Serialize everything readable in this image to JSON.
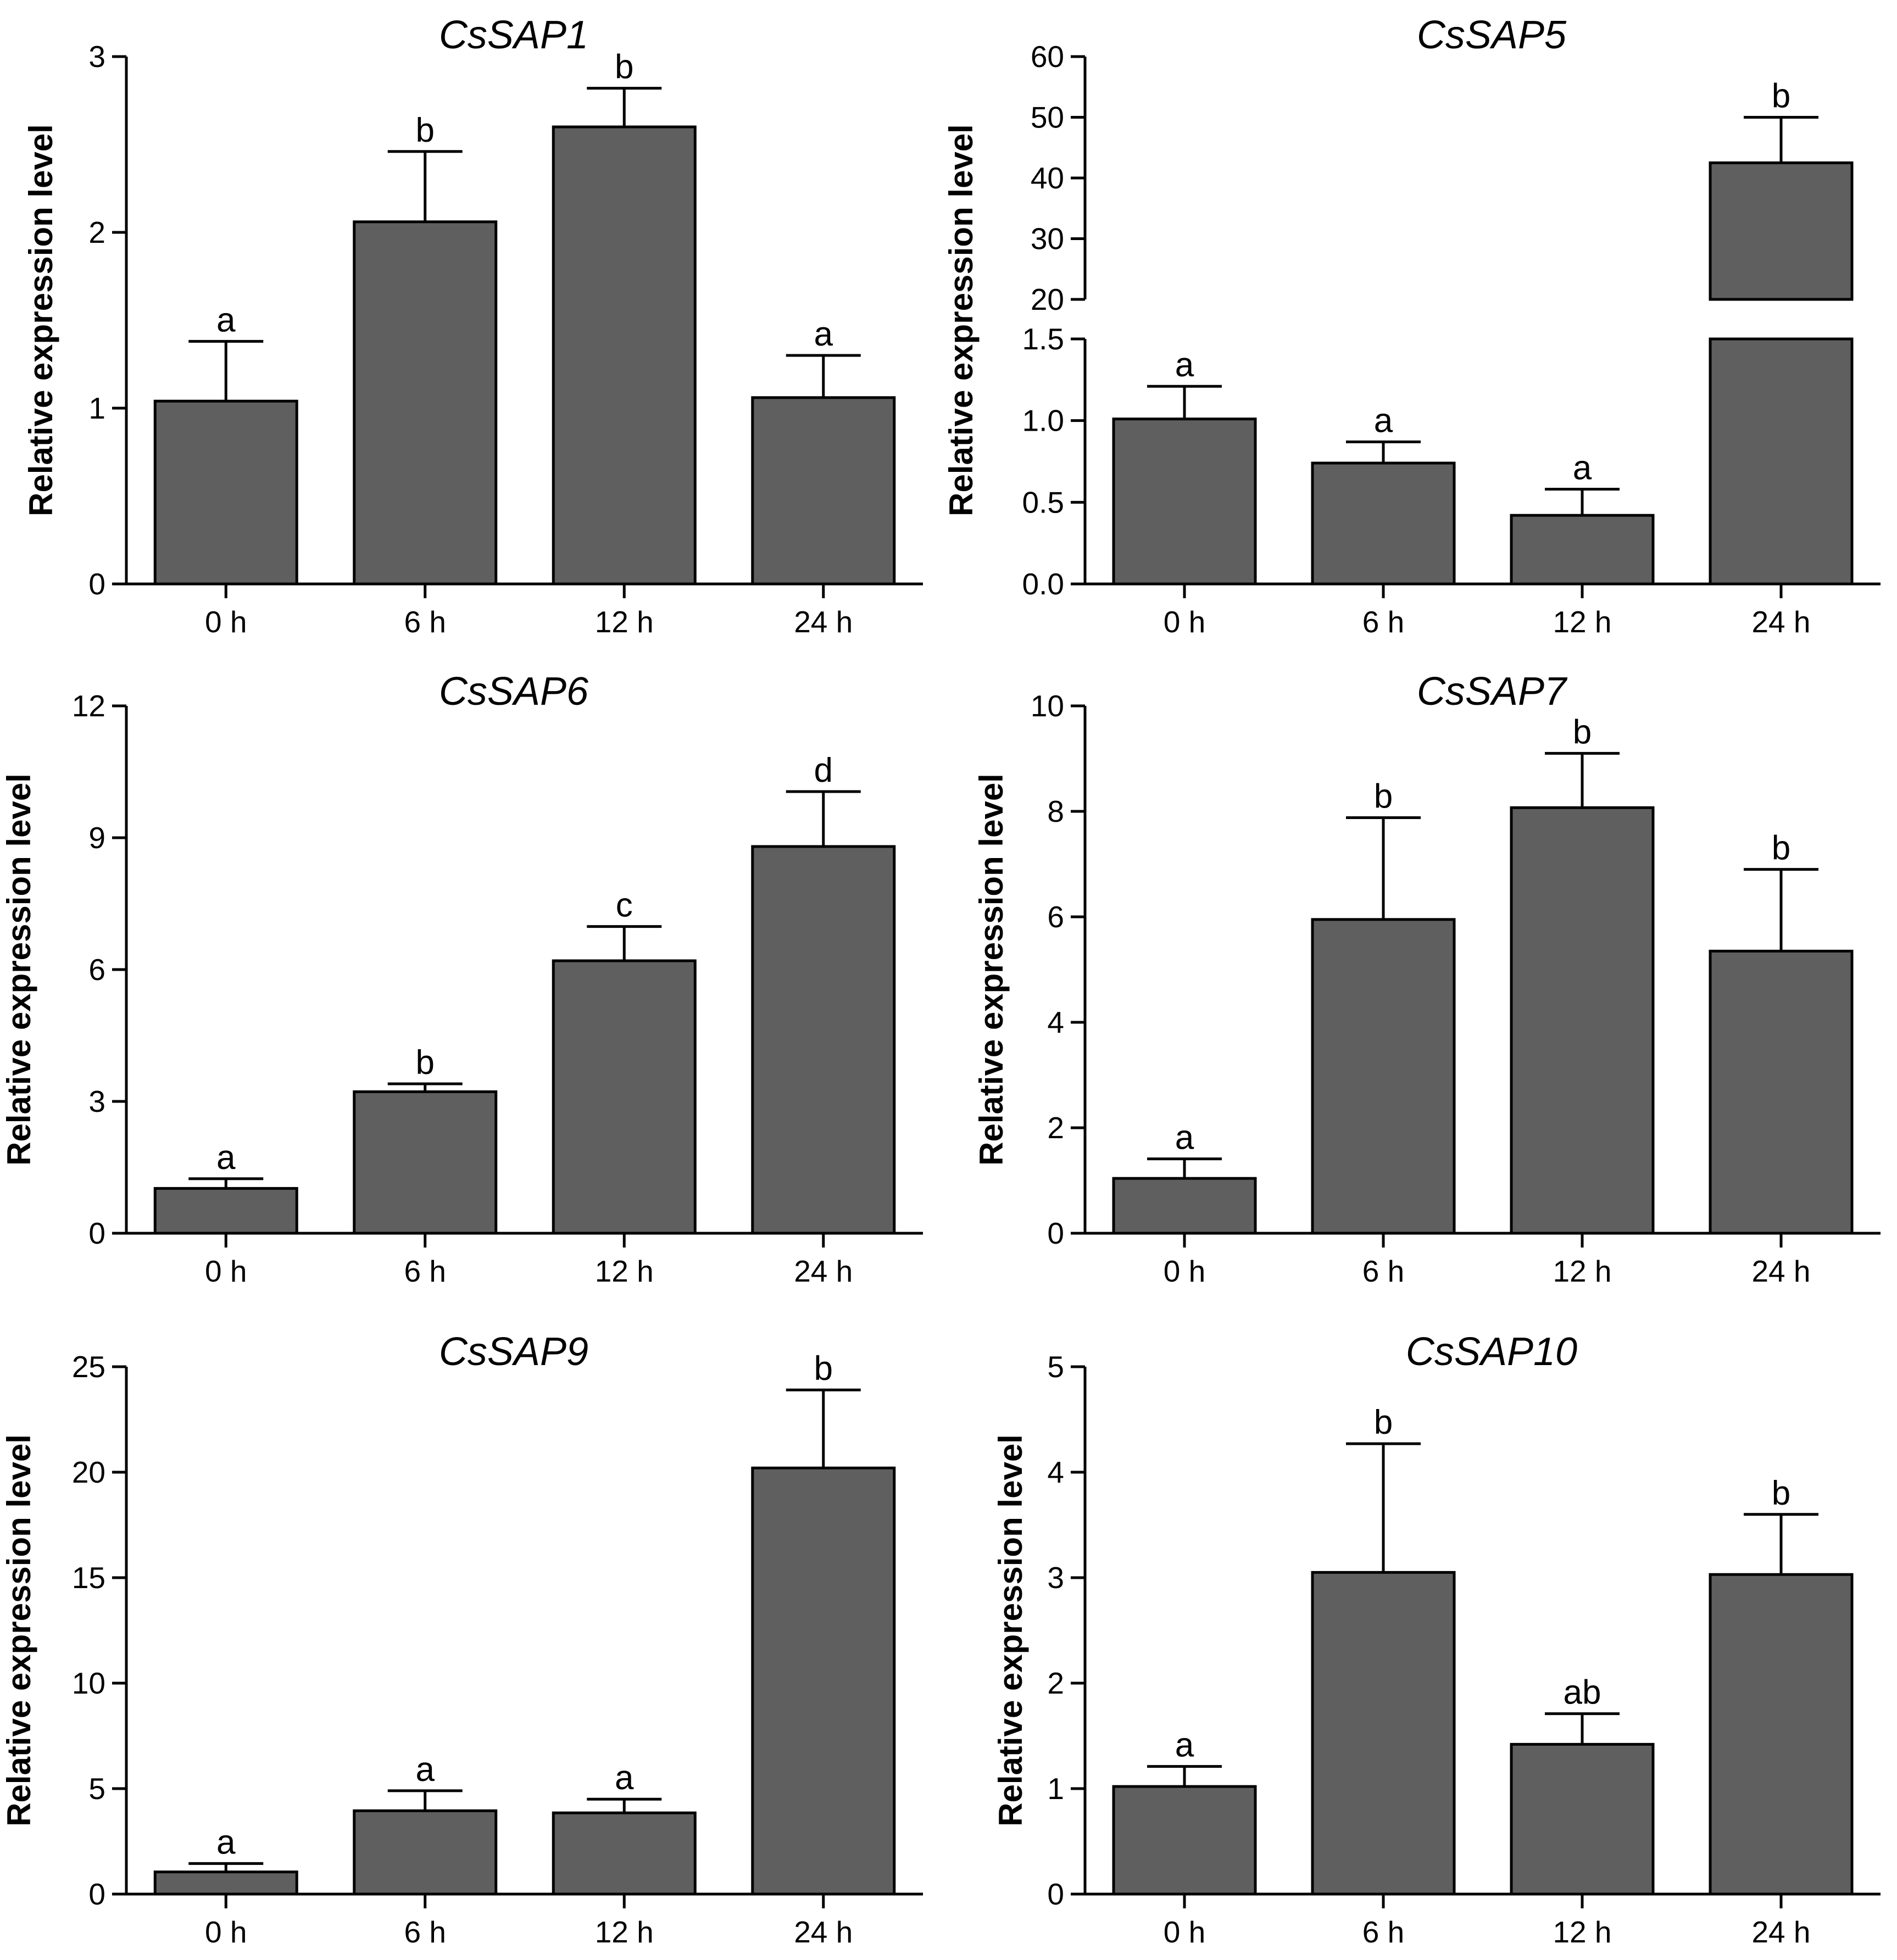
{
  "chart_data": [
    {
      "type": "bar",
      "title": "CsSAP1",
      "xlabel": "",
      "ylabel": "Relative expression level",
      "categories": [
        "0 h",
        "6 h",
        "12 h",
        "24 h"
      ],
      "values": [
        1.04,
        2.06,
        2.6,
        1.06
      ],
      "errors": [
        0.34,
        0.4,
        0.22,
        0.24
      ],
      "significance": [
        "a",
        "b",
        "b",
        "a"
      ],
      "ylim": [
        0,
        3
      ],
      "yticks": [
        0,
        1,
        2,
        3
      ],
      "ytick_labels": [
        "0",
        "1",
        "2",
        "3"
      ],
      "bar_color": "#5f5f5f",
      "grid": false
    },
    {
      "type": "bar",
      "title": "CsSAP5",
      "xlabel": "",
      "ylabel": "Relative expression level",
      "categories": [
        "0 h",
        "6 h",
        "12 h",
        "24 h"
      ],
      "values": [
        1.01,
        0.74,
        0.42,
        42.5
      ],
      "errors": [
        0.2,
        0.13,
        0.16,
        7.5
      ],
      "significance": [
        "a",
        "a",
        "a",
        "b"
      ],
      "broken_axis": {
        "lower_range": [
          0,
          1.5
        ],
        "upper_range": [
          20,
          60
        ],
        "lower_ticks": [
          0,
          0.5,
          1,
          1.5
        ],
        "lower_tick_labels": [
          "0.0",
          "0.5",
          "1.0",
          "1.5"
        ],
        "upper_ticks": [
          20,
          30,
          40,
          50,
          60
        ],
        "upper_tick_labels": [
          "20",
          "30",
          "40",
          "50",
          "60"
        ]
      },
      "bar_color": "#5f5f5f",
      "grid": false
    },
    {
      "type": "bar",
      "title": "CsSAP6",
      "xlabel": "",
      "ylabel": "Relative expression level",
      "categories": [
        "0 h",
        "6 h",
        "12 h",
        "24 h"
      ],
      "values": [
        1.02,
        3.22,
        6.2,
        8.8
      ],
      "errors": [
        0.22,
        0.18,
        0.78,
        1.25
      ],
      "significance": [
        "a",
        "b",
        "c",
        "d"
      ],
      "ylim": [
        0,
        12
      ],
      "yticks": [
        0,
        3,
        6,
        9,
        12
      ],
      "ytick_labels": [
        "0",
        "3",
        "6",
        "9",
        "12"
      ],
      "bar_color": "#5f5f5f",
      "grid": false
    },
    {
      "type": "bar",
      "title": "CsSAP7",
      "xlabel": "",
      "ylabel": "Relative expression level",
      "categories": [
        "0 h",
        "6 h",
        "12 h",
        "24 h"
      ],
      "values": [
        1.04,
        5.95,
        8.07,
        5.35
      ],
      "errors": [
        0.37,
        1.93,
        1.03,
        1.55
      ],
      "significance": [
        "a",
        "b",
        "b",
        "b"
      ],
      "ylim": [
        0,
        10
      ],
      "yticks": [
        0,
        2,
        4,
        6,
        8,
        10
      ],
      "ytick_labels": [
        "0",
        "2",
        "4",
        "6",
        "8",
        "10"
      ],
      "bar_color": "#5f5f5f",
      "grid": false
    },
    {
      "type": "bar",
      "title": "CsSAP9",
      "xlabel": "",
      "ylabel": "Relative expression level",
      "categories": [
        "0 h",
        "6 h",
        "12 h",
        "24 h"
      ],
      "values": [
        1.05,
        3.95,
        3.85,
        20.2
      ],
      "errors": [
        0.4,
        0.95,
        0.65,
        3.7
      ],
      "significance": [
        "a",
        "a",
        "a",
        "b"
      ],
      "ylim": [
        0,
        25
      ],
      "yticks": [
        0,
        5,
        10,
        15,
        20,
        25
      ],
      "ytick_labels": [
        "0",
        "5",
        "10",
        "15",
        "20",
        "25"
      ],
      "bar_color": "#5f5f5f",
      "grid": false
    },
    {
      "type": "bar",
      "title": "CsSAP10",
      "xlabel": "",
      "ylabel": "Relative expression level",
      "categories": [
        "0 h",
        "6 h",
        "12 h",
        "24 h"
      ],
      "values": [
        1.02,
        3.05,
        1.42,
        3.03
      ],
      "errors": [
        0.19,
        1.22,
        0.29,
        0.57
      ],
      "significance": [
        "a",
        "b",
        "ab",
        "b"
      ],
      "ylim": [
        0,
        5
      ],
      "yticks": [
        0,
        1,
        2,
        3,
        4,
        5
      ],
      "ytick_labels": [
        "0",
        "1",
        "2",
        "3",
        "4",
        "5"
      ],
      "bar_color": "#5f5f5f",
      "grid": false
    }
  ]
}
